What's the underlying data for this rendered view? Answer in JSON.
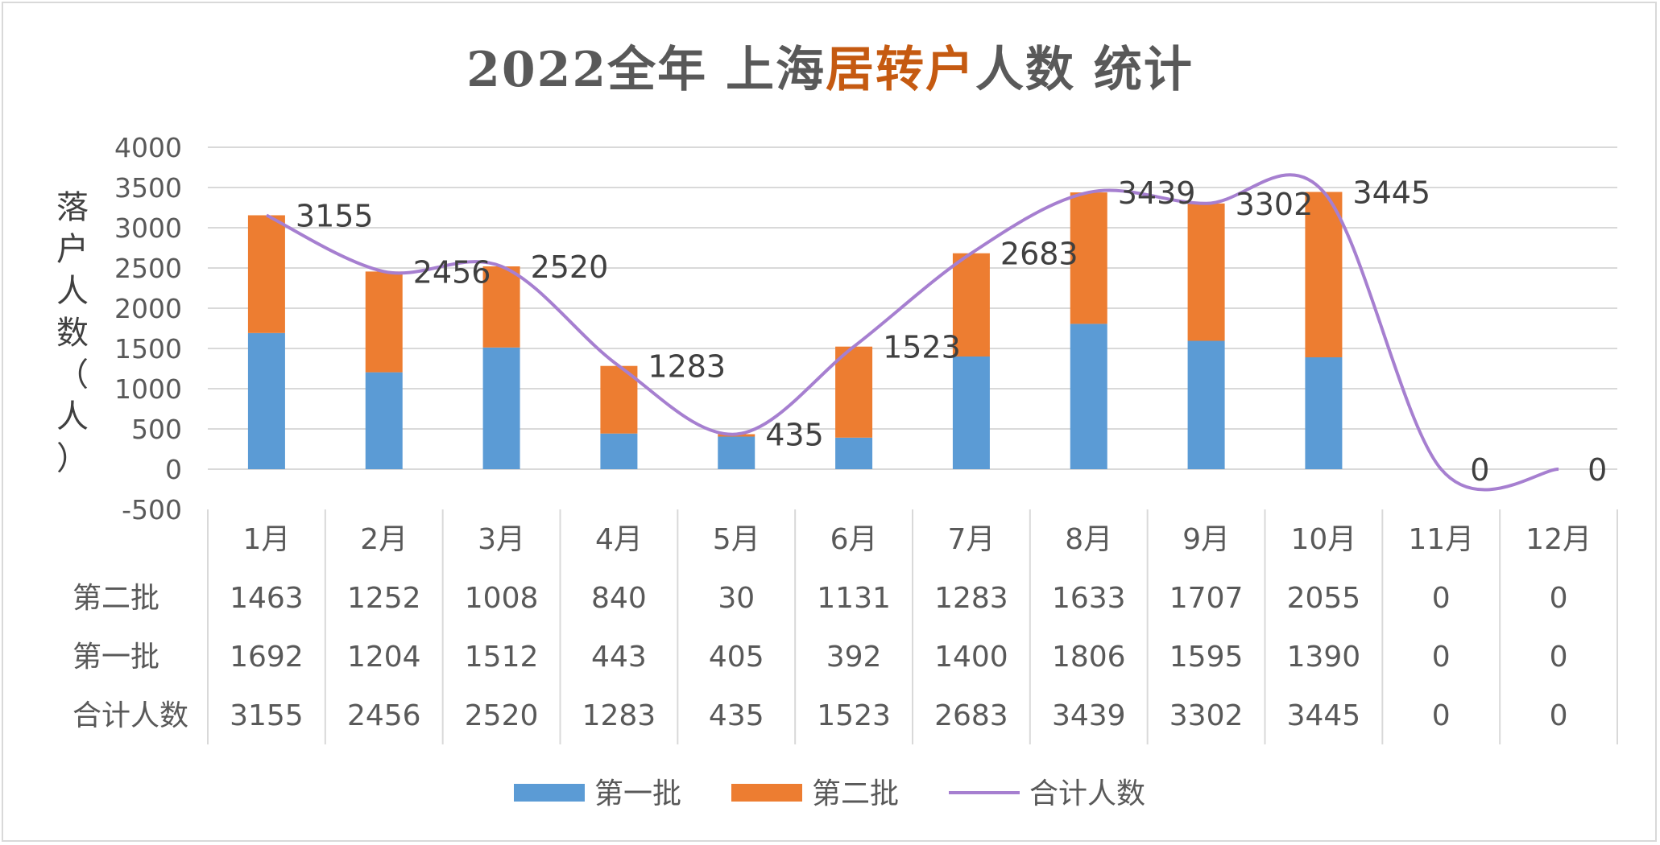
{
  "title": {
    "part1": "2022全年 上海",
    "part2": "居转户",
    "part3": "人数 统计"
  },
  "colors": {
    "first": "#5b9bd5",
    "second": "#ed7d31",
    "total": "#a67fd0",
    "title_highlight": "#c55a11",
    "grid": "#d9d9d9",
    "text": "#595959"
  },
  "chart_data": {
    "type": "bar",
    "stacked": true,
    "title": "2022全年 上海居转户人数 统计",
    "ylabel": "落户人数（人）",
    "xlabel": "",
    "ylim": [
      -500,
      4000
    ],
    "yticks": [
      -500,
      0,
      500,
      1000,
      1500,
      2000,
      2500,
      3000,
      3500,
      4000
    ],
    "grid": true,
    "legend_position": "bottom",
    "categories": [
      "1月",
      "2月",
      "3月",
      "4月",
      "5月",
      "6月",
      "7月",
      "8月",
      "9月",
      "10月",
      "11月",
      "12月"
    ],
    "series": [
      {
        "name": "第一批",
        "kind": "bar",
        "values": [
          1692,
          1204,
          1512,
          443,
          405,
          392,
          1400,
          1806,
          1595,
          1390,
          0,
          0
        ]
      },
      {
        "name": "第二批",
        "kind": "bar",
        "values": [
          1463,
          1252,
          1008,
          840,
          30,
          1131,
          1283,
          1633,
          1707,
          2055,
          0,
          0
        ]
      },
      {
        "name": "合计人数",
        "kind": "line",
        "smooth": true,
        "values": [
          3155,
          2456,
          2520,
          1283,
          435,
          1523,
          2683,
          3439,
          3302,
          3445,
          0,
          0
        ]
      }
    ],
    "data_table": [
      {
        "label": "第二批",
        "values": [
          "1463",
          "1252",
          "1008",
          "840",
          "30",
          "1131",
          "1283",
          "1633",
          "1707",
          "2055",
          "0",
          "0"
        ]
      },
      {
        "label": "第一批",
        "values": [
          "1692",
          "1204",
          "1512",
          "443",
          "405",
          "392",
          "1400",
          "1806",
          "1595",
          "1390",
          "0",
          "0"
        ]
      },
      {
        "label": "合计人数",
        "values": [
          "3155",
          "2456",
          "2520",
          "1283",
          "435",
          "1523",
          "2683",
          "3439",
          "3302",
          "3445",
          "0",
          "0"
        ]
      }
    ],
    "legend": [
      "第一批",
      "第二批",
      "合计人数"
    ]
  }
}
